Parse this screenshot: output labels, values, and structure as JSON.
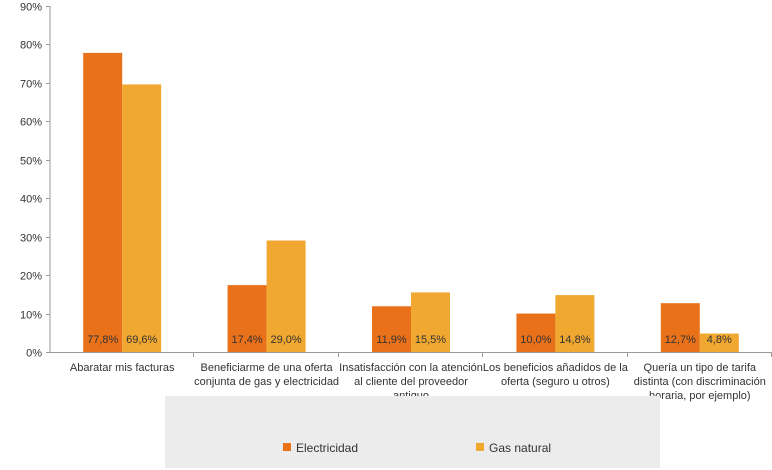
{
  "chart_data": {
    "type": "bar",
    "title": "",
    "xlabel": "",
    "ylabel": "",
    "ylim": [
      0,
      90
    ],
    "yticks": [
      0,
      10,
      20,
      30,
      40,
      50,
      60,
      70,
      80,
      90
    ],
    "y_tick_format": "percent",
    "grid": false,
    "legend_position": "bottom",
    "categories": [
      [
        "Abaratar mis facturas"
      ],
      [
        "Beneficiarme de una oferta",
        "conjunta de gas y electricidad"
      ],
      [
        "Insatisfacción con la atención",
        "al cliente del proveedor",
        "antiguo"
      ],
      [
        "Los beneficios añadidos de la",
        "oferta (seguro u otros)"
      ],
      [
        "Quería un tipo de tarifa",
        "distinta (con discriminación",
        "horaria, por ejemplo)"
      ]
    ],
    "series": [
      {
        "name": "Electricidad",
        "color": "#e8711a",
        "values": [
          77.8,
          17.4,
          11.9,
          10.0,
          12.7
        ],
        "labels": [
          "77,8%",
          "17,4%",
          "11,9%",
          "10,0%",
          "12,7%"
        ]
      },
      {
        "name": "Gas natural",
        "color": "#f0a830",
        "values": [
          69.6,
          29.0,
          15.5,
          14.8,
          4.8
        ],
        "labels": [
          "69,6%",
          "29,0%",
          "15,5%",
          "14,8%",
          "4,8%"
        ]
      }
    ]
  },
  "colors": {
    "axis": "#9a9a9a",
    "text": "#333333",
    "legend_bg": "#ececec"
  }
}
